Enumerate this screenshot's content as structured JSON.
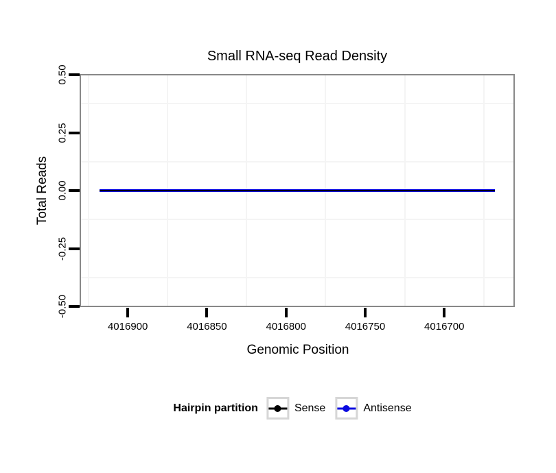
{
  "page": {
    "background": "#ffffff"
  },
  "chart_data": {
    "type": "line",
    "title": "Small RNA-seq Read Density",
    "xlabel": "Genomic Position",
    "ylabel": "Total Reads",
    "x_axis_reversed": true,
    "xlim": [
      4016930,
      4016655
    ],
    "ylim": [
      -0.5,
      0.5
    ],
    "x_ticks": [
      4016900,
      4016850,
      4016800,
      4016750,
      4016700
    ],
    "x_tick_labels": [
      "4016900",
      "4016850",
      "4016800",
      "4016750",
      "4016700"
    ],
    "y_ticks": [
      0.5,
      0.25,
      0,
      -0.25,
      -0.5
    ],
    "y_tick_labels": [
      "0.50",
      "0.25",
      "0.00",
      "-0.25",
      "-0.50"
    ],
    "x_minor_gridlines": [
      4016925,
      4016875,
      4016825,
      4016775,
      4016725,
      4016675
    ],
    "y_minor_gridlines": [
      0.375,
      0.125,
      -0.125,
      -0.375
    ],
    "grid": "minor-only",
    "panel_border_color": "#888888",
    "grid_color": "#f4f4f4",
    "series": [
      {
        "name": "Sense",
        "color": "#000000",
        "x": [
          4016918,
          4016668
        ],
        "y": [
          0,
          0
        ]
      },
      {
        "name": "Antisense",
        "color": "#0b0be0",
        "x": [
          4016918,
          4016668
        ],
        "y": [
          0,
          0
        ]
      }
    ],
    "legend": {
      "title": "Hairpin partition",
      "position": "bottom",
      "entries": [
        {
          "label": "Sense",
          "color": "#000000"
        },
        {
          "label": "Antisense",
          "color": "#0b0be0"
        }
      ]
    }
  }
}
